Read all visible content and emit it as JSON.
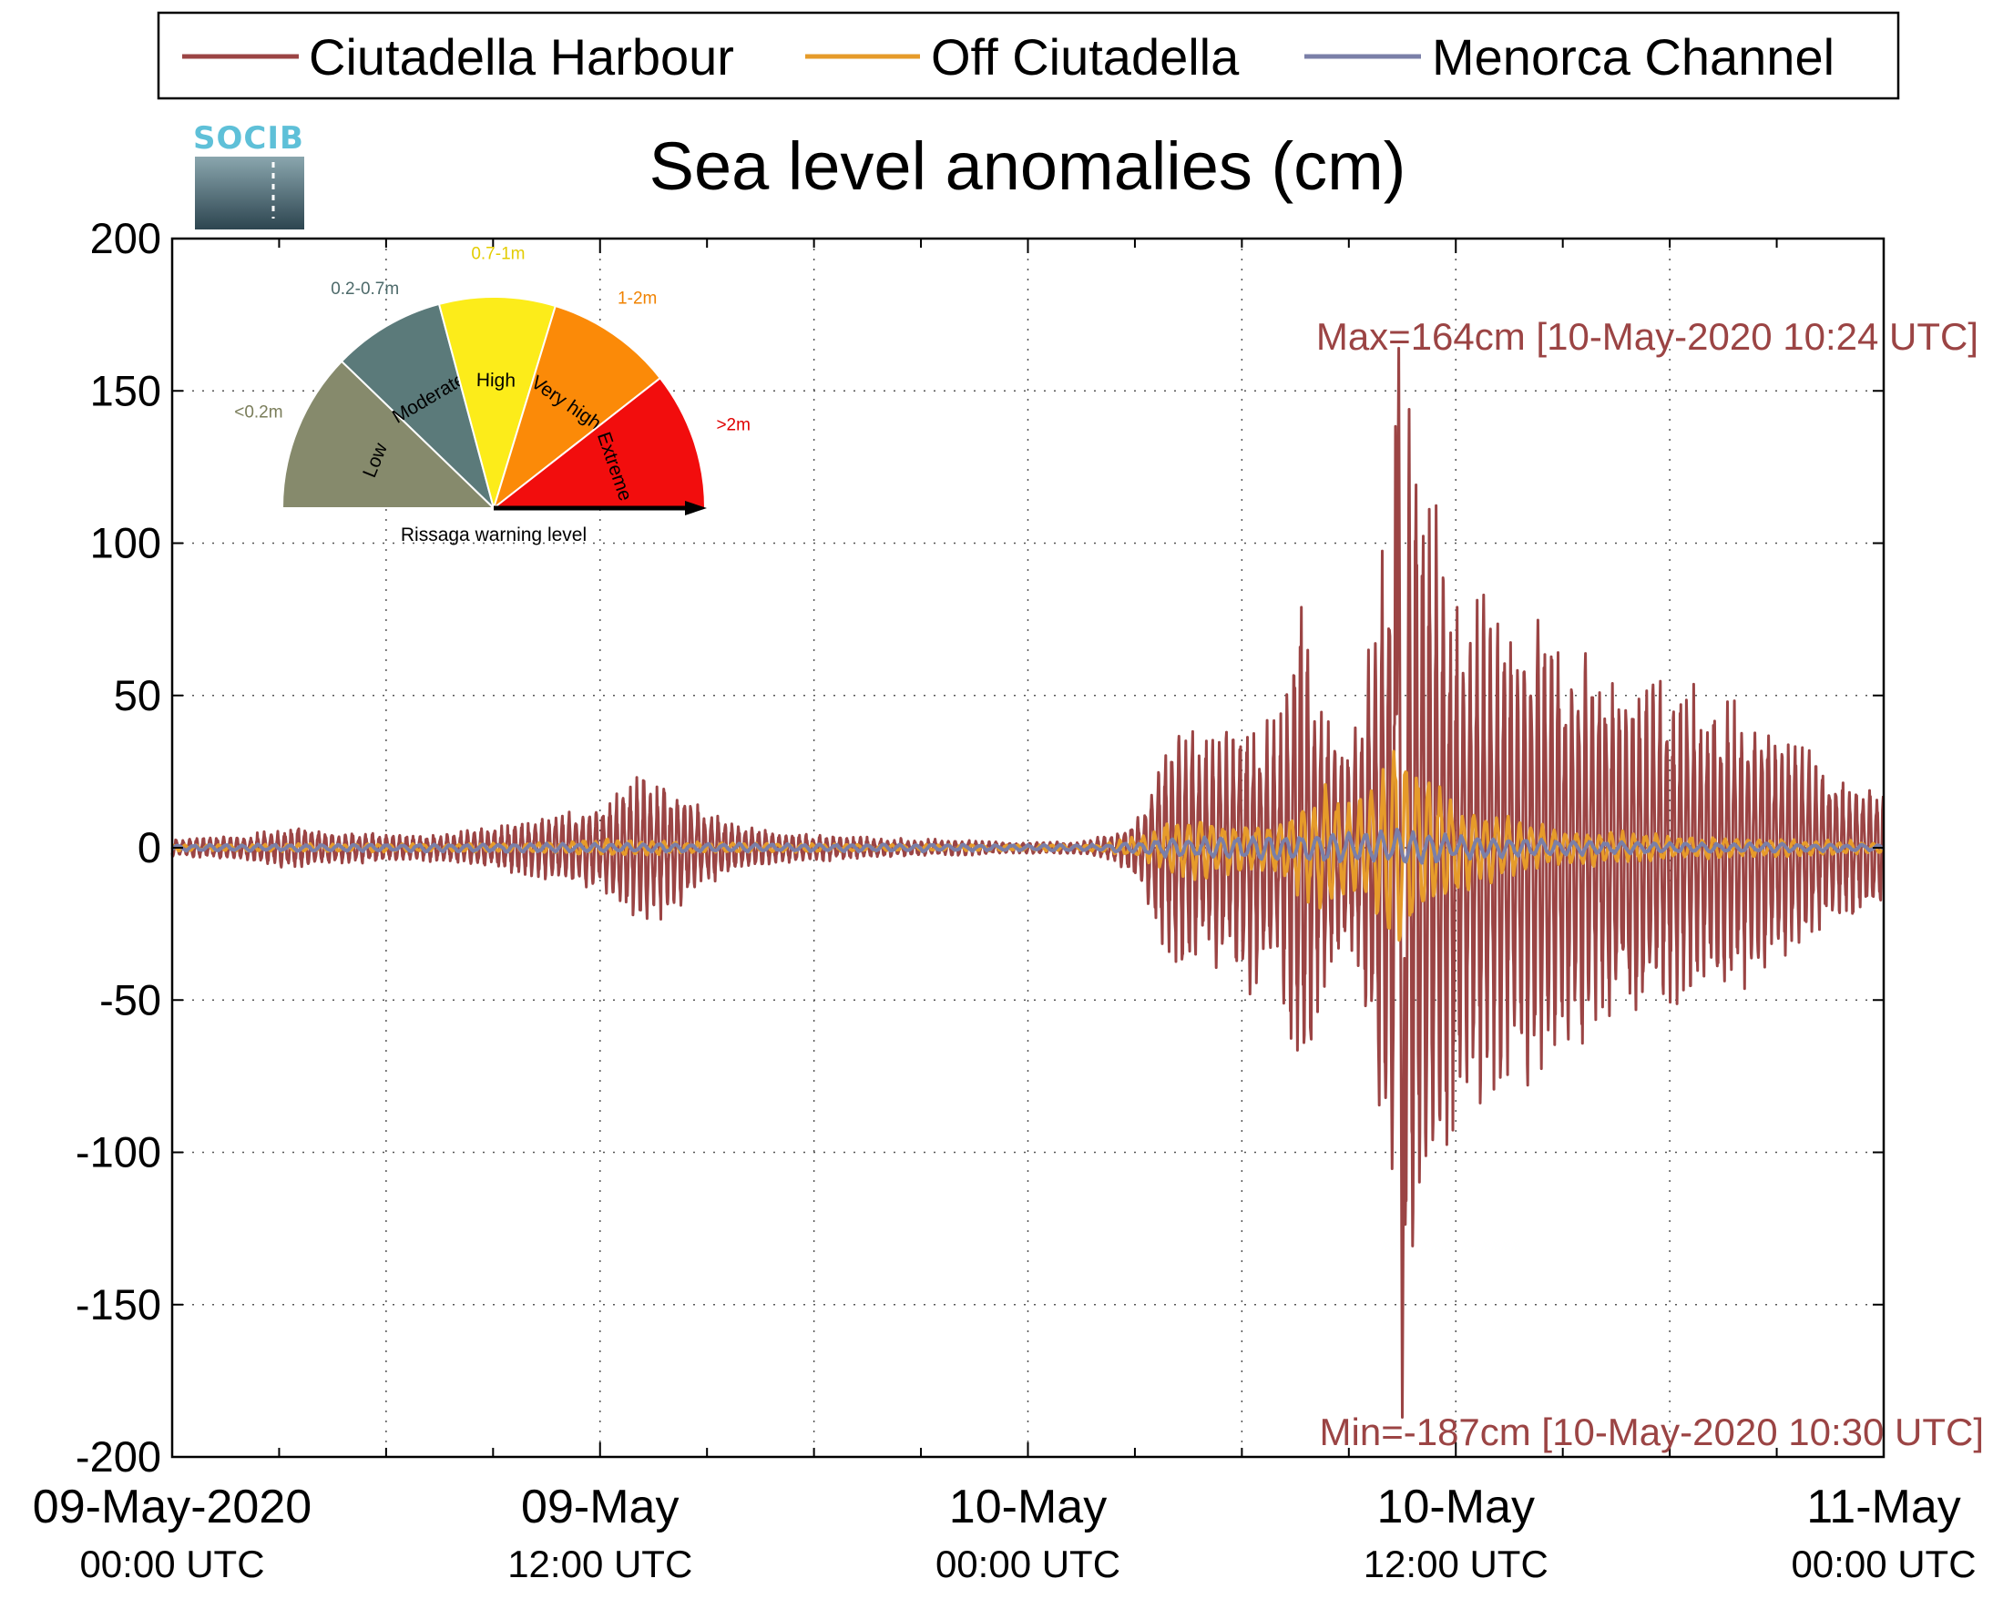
{
  "chart_data": {
    "type": "line",
    "title": "Sea level anomalies (cm)",
    "xlabel": "",
    "ylabel": "",
    "ylim": [
      -200,
      200
    ],
    "yticks": [
      200,
      150,
      100,
      50,
      0,
      -50,
      -100,
      -150,
      -200
    ],
    "xlim_hours": [
      0,
      48
    ],
    "xticks": [
      {
        "date": "09-May-2020",
        "time": "00:00 UTC"
      },
      {
        "date": "09-May",
        "time": "12:00 UTC"
      },
      {
        "date": "10-May",
        "time": "00:00 UTC"
      },
      {
        "date": "10-May",
        "time": "12:00 UTC"
      },
      {
        "date": "11-May",
        "time": "00:00 UTC"
      }
    ],
    "grid": true,
    "legend_position": "top",
    "series": [
      {
        "name": "Ciutadella Harbour",
        "color": "#9b4444",
        "envelope": [
          [
            0,
            3
          ],
          [
            2,
            4
          ],
          [
            3.5,
            7
          ],
          [
            5,
            5
          ],
          [
            7,
            4
          ],
          [
            8.5,
            6
          ],
          [
            9.5,
            8
          ],
          [
            10.5,
            10
          ],
          [
            11.5,
            12
          ],
          [
            12.5,
            18
          ],
          [
            13.2,
            25
          ],
          [
            14,
            20
          ],
          [
            15,
            12
          ],
          [
            16,
            7
          ],
          [
            17,
            5
          ],
          [
            18.5,
            4
          ],
          [
            20,
            3
          ],
          [
            22,
            2.5
          ],
          [
            24,
            2
          ],
          [
            25.5,
            2
          ],
          [
            26.5,
            5
          ],
          [
            27.2,
            12
          ],
          [
            27.8,
            35
          ],
          [
            28.3,
            40
          ],
          [
            29,
            35
          ],
          [
            30,
            45
          ],
          [
            31,
            40
          ],
          [
            31.7,
            85
          ],
          [
            32.2,
            50
          ],
          [
            33,
            30
          ],
          [
            33.7,
            70
          ],
          [
            34.2,
            120
          ],
          [
            34.5,
            150
          ],
          [
            35,
            140
          ],
          [
            35.6,
            100
          ],
          [
            36.4,
            80
          ],
          [
            37.5,
            78
          ],
          [
            38.5,
            75
          ],
          [
            40,
            60
          ],
          [
            41,
            62
          ],
          [
            42.5,
            50
          ],
          [
            44,
            45
          ],
          [
            45.5,
            35
          ],
          [
            46.5,
            25
          ],
          [
            48,
            20
          ]
        ],
        "max_label": "Max=164cm [10-May-2020 10:24 UTC]",
        "min_label": "Min=-187cm [10-May-2020 10:30 UTC]",
        "max": {
          "hour": 34.4,
          "value": 164
        },
        "min": {
          "hour": 34.5,
          "value": -187
        }
      },
      {
        "name": "Off Ciutadella",
        "color": "#e69b2a",
        "envelope": [
          [
            0,
            1
          ],
          [
            10,
            1.5
          ],
          [
            12.5,
            3
          ],
          [
            14,
            2
          ],
          [
            20,
            1
          ],
          [
            26,
            1
          ],
          [
            27.5,
            5
          ],
          [
            28.3,
            12
          ],
          [
            29,
            10
          ],
          [
            31,
            8
          ],
          [
            32.2,
            22
          ],
          [
            33.5,
            18
          ],
          [
            34.2,
            35
          ],
          [
            35,
            30
          ],
          [
            36,
            15
          ],
          [
            38,
            8
          ],
          [
            42,
            4
          ],
          [
            48,
            2
          ]
        ]
      },
      {
        "name": "Menorca Channel",
        "color": "#7a7fa8",
        "envelope": [
          [
            0,
            1
          ],
          [
            12,
            1.5
          ],
          [
            26,
            1
          ],
          [
            28,
            3
          ],
          [
            30,
            4
          ],
          [
            33,
            5
          ],
          [
            35,
            6
          ],
          [
            36,
            4
          ],
          [
            40,
            2
          ],
          [
            48,
            1
          ]
        ]
      }
    ]
  },
  "legend": {
    "items": [
      {
        "label": "Ciutadella Harbour",
        "color": "#9b4444"
      },
      {
        "label": "Off Ciutadella",
        "color": "#e69b2a"
      },
      {
        "label": "Menorca Channel",
        "color": "#7a7fa8"
      }
    ]
  },
  "logo": {
    "text": "SOCIB"
  },
  "gauge": {
    "caption": "Rissaga warning level",
    "segments": [
      {
        "name": "Low",
        "range": "<0.2m",
        "color": "#868a6c",
        "range_color": "#7a7d5a"
      },
      {
        "name": "Moderate",
        "range": "0.2-0.7m",
        "color": "#5b7a7a",
        "range_color": "#4d6a6a"
      },
      {
        "name": "High",
        "range": "0.7-1m",
        "color": "#fcec1a",
        "range_color": "#e3cc00"
      },
      {
        "name": "Very high",
        "range": "1-2m",
        "color": "#fb8a08",
        "range_color": "#f08200"
      },
      {
        "name": "Extreme",
        "range": ">2m",
        "color": "#f20d0d",
        "range_color": "#e00000"
      }
    ]
  }
}
